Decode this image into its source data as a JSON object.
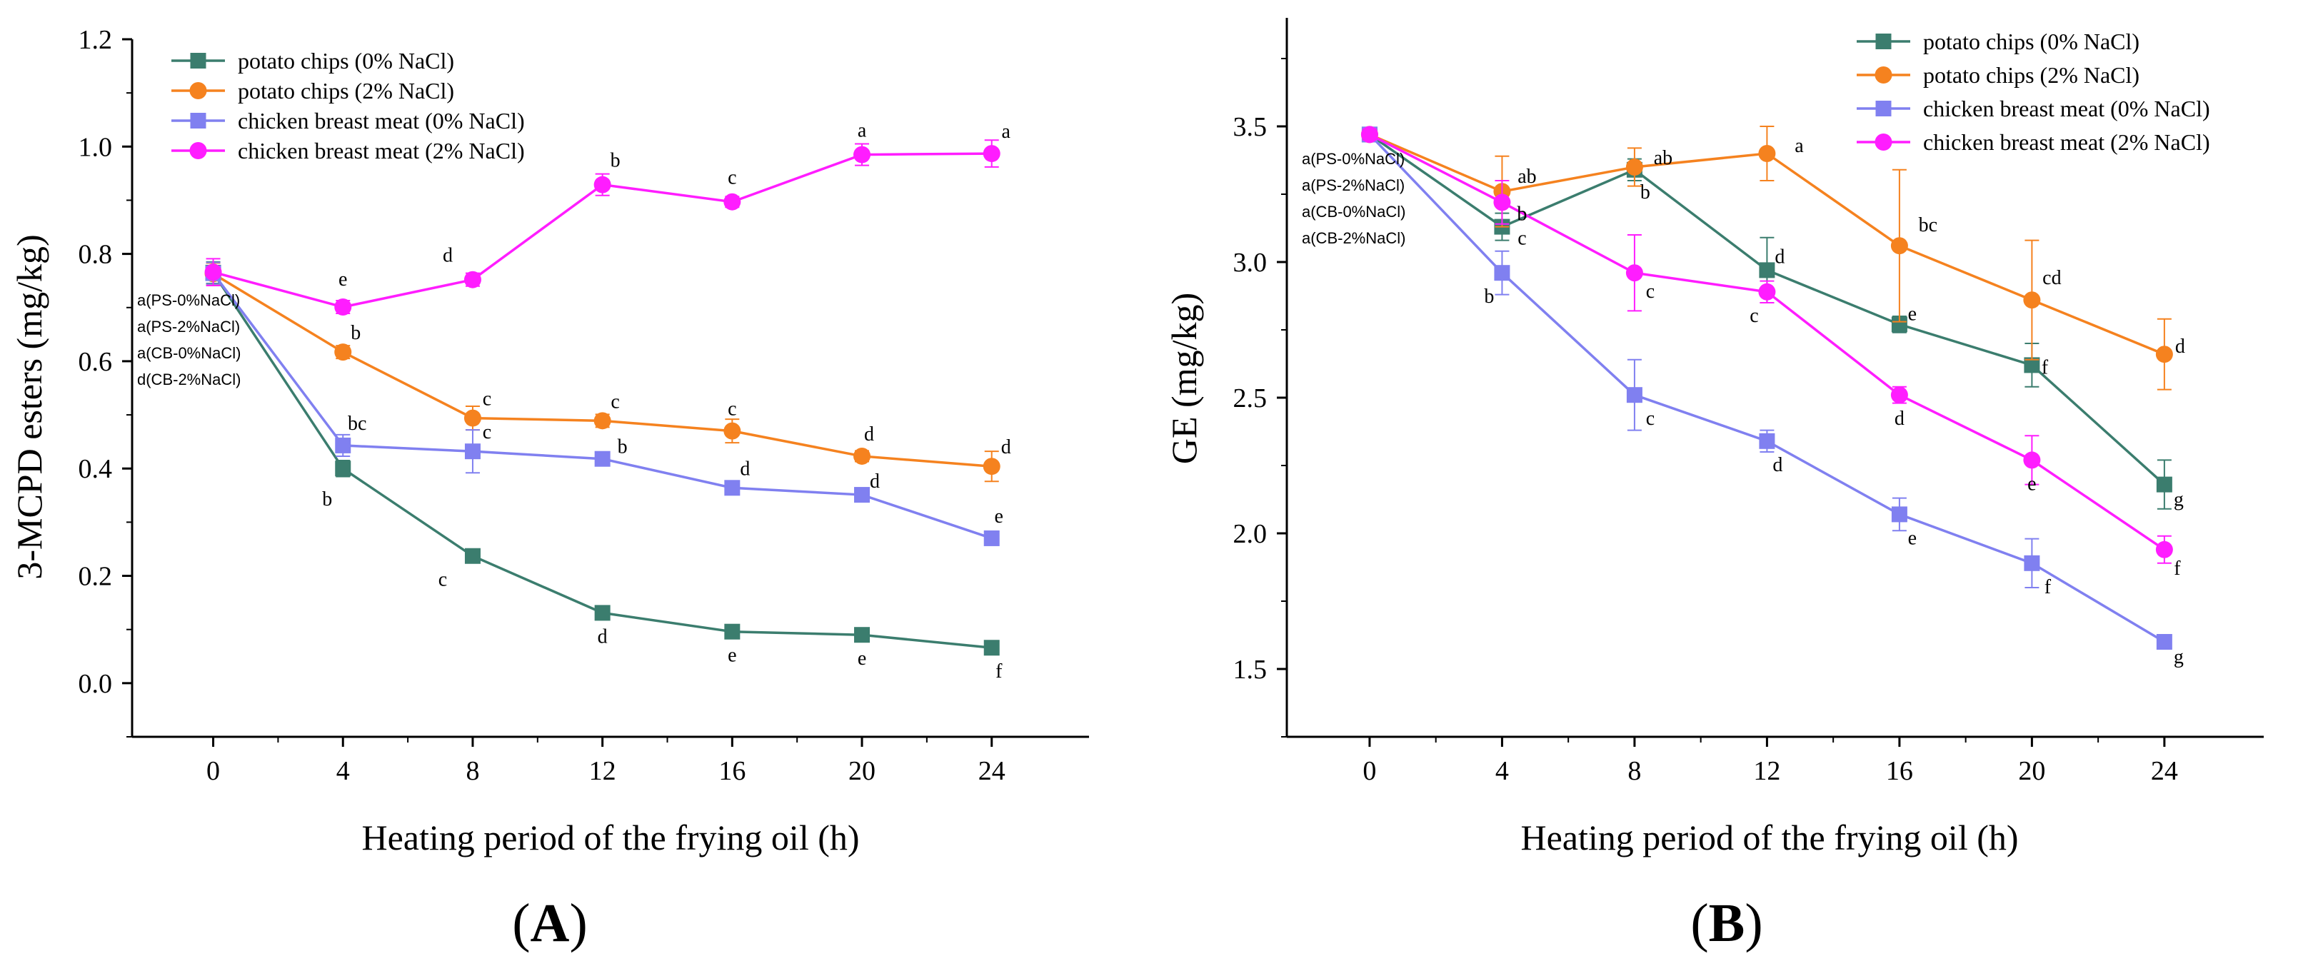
{
  "chart_data": [
    {
      "id": "A",
      "type": "line",
      "panel_label": "A",
      "title": "",
      "xlabel": "Heating period  of  the frying oil (h)",
      "ylabel": "3-MCPD esters (mg/kg)",
      "x": [
        0,
        4,
        8,
        12,
        16,
        20,
        24
      ],
      "xlim": [
        -2.5,
        27
      ],
      "ylim": [
        -0.1,
        1.2
      ],
      "yticks": [
        0.0,
        0.2,
        0.4,
        0.6,
        0.8,
        1.0,
        1.2
      ],
      "ytick_labels": [
        "0.0",
        "0.2",
        "0.4",
        "0.6",
        "0.8",
        "1.0",
        "1.2"
      ],
      "xtick_labels": [
        "0",
        "4",
        "8",
        "12",
        "16",
        "20",
        "24"
      ],
      "legend_position": "top-left",
      "series": [
        {
          "name": "potato chips (0% NaCl)",
          "color": "#3b7d6e",
          "marker": "square",
          "values": [
            0.765,
            0.4,
            0.237,
            0.131,
            0.096,
            0.09,
            0.066
          ],
          "errors": [
            0.02,
            0.015,
            0.01,
            0.008,
            0.006,
            0.006,
            0.005
          ],
          "labels": [
            "",
            "b",
            "c",
            "d",
            "e",
            "e",
            "f"
          ]
        },
        {
          "name": "potato chips (2% NaCl)",
          "color": "#f5821f",
          "marker": "circle",
          "values": [
            0.763,
            0.617,
            0.494,
            0.489,
            0.47,
            0.423,
            0.404
          ],
          "errors": [
            0.02,
            0.012,
            0.022,
            0.012,
            0.022,
            0.01,
            0.028
          ],
          "labels": [
            "",
            "b",
            "c",
            "c",
            "c",
            "d",
            "d"
          ]
        },
        {
          "name": "chicken breast  meat (0% NaCl)",
          "color": "#8080f0",
          "marker": "square",
          "values": [
            0.764,
            0.443,
            0.432,
            0.418,
            0.364,
            0.351,
            0.27
          ],
          "errors": [
            0.02,
            0.02,
            0.04,
            0.012,
            0.012,
            0.01,
            0.01
          ],
          "labels": [
            "",
            "bc",
            "c",
            "b",
            "d",
            "d",
            "e"
          ]
        },
        {
          "name": "chicken breast  meat (2% NaCl)",
          "color": "#ff1dff",
          "marker": "circle",
          "values": [
            0.766,
            0.701,
            0.752,
            0.929,
            0.897,
            0.985,
            0.987
          ],
          "errors": [
            0.025,
            0.012,
            0.012,
            0.02,
            0.01,
            0.02,
            0.025
          ],
          "labels": [
            "",
            "e",
            "d",
            "b",
            "c",
            "a",
            "a"
          ]
        }
      ],
      "notes": [
        "a(PS-0%NaCl)",
        "a(PS-2%NaCl)",
        "a(CB-0%NaCl)",
        "d(CB-2%NaCl)"
      ]
    },
    {
      "id": "B",
      "type": "line",
      "panel_label": "B",
      "title": "",
      "xlabel": "Heating period  of  the frying oil (h)",
      "ylabel": "GE (mg/kg)",
      "x": [
        0,
        4,
        8,
        12,
        16,
        20,
        24
      ],
      "xlim": [
        -2.5,
        27
      ],
      "ylim": [
        1.25,
        3.9
      ],
      "yticks": [
        1.5,
        2.0,
        2.5,
        3.0,
        3.5
      ],
      "ytick_labels": [
        "1.5",
        "2.0",
        "2.5",
        "3.0",
        "3.5"
      ],
      "xtick_labels": [
        "0",
        "4",
        "8",
        "12",
        "16",
        "20",
        "24"
      ],
      "legend_position": "top-right",
      "series": [
        {
          "name": "potato chips (0% NaCl)",
          "color": "#3b7d6e",
          "marker": "square",
          "values": [
            3.47,
            3.13,
            3.34,
            2.97,
            2.77,
            2.62,
            2.18
          ],
          "errors": [
            0.02,
            0.05,
            0.04,
            0.12,
            0.03,
            0.08,
            0.09
          ],
          "labels": [
            "",
            "c",
            "b",
            "d",
            "e",
            "f",
            "g"
          ]
        },
        {
          "name": "potato chips (2% NaCl)",
          "color": "#f5821f",
          "marker": "circle",
          "values": [
            3.47,
            3.26,
            3.35,
            3.4,
            3.06,
            2.86,
            2.66
          ],
          "errors": [
            0.02,
            0.13,
            0.07,
            0.1,
            0.28,
            0.22,
            0.13
          ],
          "labels": [
            "",
            "ab",
            "ab",
            "a",
            "bc",
            "cd",
            "d"
          ]
        },
        {
          "name": "chicken breast  meat (0% NaCl)",
          "color": "#8080f0",
          "marker": "square",
          "values": [
            3.47,
            2.96,
            2.51,
            2.34,
            2.07,
            1.89,
            1.6
          ],
          "errors": [
            0.02,
            0.08,
            0.13,
            0.04,
            0.06,
            0.09,
            0.02
          ],
          "labels": [
            "",
            "b",
            "c",
            "d",
            "e",
            "f",
            "g"
          ]
        },
        {
          "name": "chicken breast  meat (2% NaCl)",
          "color": "#ff1dff",
          "marker": "circle",
          "values": [
            3.47,
            3.22,
            2.96,
            2.89,
            2.51,
            2.27,
            1.94
          ],
          "errors": [
            0.02,
            0.08,
            0.14,
            0.04,
            0.03,
            0.09,
            0.05
          ],
          "labels": [
            "",
            "b",
            "c",
            "c",
            "d",
            "e",
            "f"
          ]
        }
      ],
      "notes": [
        "a(PS-0%NaCl)",
        "a(PS-2%NaCl)",
        "a(CB-0%NaCl)",
        "a(CB-2%NaCl)"
      ]
    }
  ]
}
